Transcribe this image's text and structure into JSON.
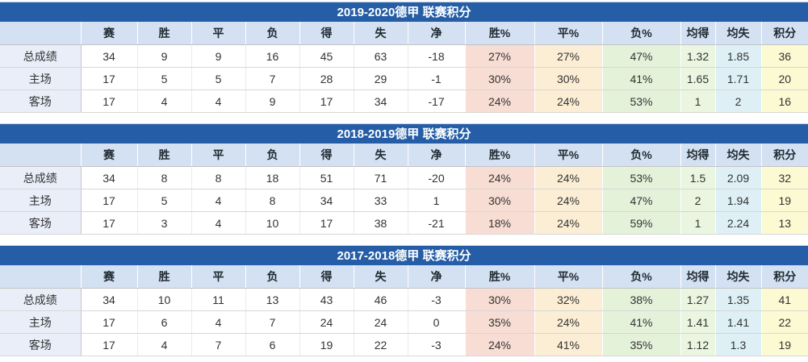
{
  "columns": [
    "",
    "赛",
    "胜",
    "平",
    "负",
    "得",
    "失",
    "净",
    "胜%",
    "平%",
    "负%",
    "均得",
    "均失",
    "积分"
  ],
  "tables": [
    {
      "title": "2019-2020德甲 联赛积分",
      "rows": [
        {
          "label": "总成绩",
          "values": [
            "34",
            "9",
            "9",
            "16",
            "45",
            "63",
            "-18",
            "27%",
            "27%",
            "47%",
            "1.32",
            "1.85",
            "36"
          ]
        },
        {
          "label": "主场",
          "values": [
            "17",
            "5",
            "5",
            "7",
            "28",
            "29",
            "-1",
            "30%",
            "30%",
            "41%",
            "1.65",
            "1.71",
            "20"
          ]
        },
        {
          "label": "客场",
          "values": [
            "17",
            "4",
            "4",
            "9",
            "17",
            "34",
            "-17",
            "24%",
            "24%",
            "53%",
            "1",
            "2",
            "16"
          ]
        }
      ]
    },
    {
      "title": "2018-2019德甲 联赛积分",
      "rows": [
        {
          "label": "总成绩",
          "values": [
            "34",
            "8",
            "8",
            "18",
            "51",
            "71",
            "-20",
            "24%",
            "24%",
            "53%",
            "1.5",
            "2.09",
            "32"
          ]
        },
        {
          "label": "主场",
          "values": [
            "17",
            "5",
            "4",
            "8",
            "34",
            "33",
            "1",
            "30%",
            "24%",
            "47%",
            "2",
            "1.94",
            "19"
          ]
        },
        {
          "label": "客场",
          "values": [
            "17",
            "3",
            "4",
            "10",
            "17",
            "38",
            "-21",
            "18%",
            "24%",
            "59%",
            "1",
            "2.24",
            "13"
          ]
        }
      ]
    },
    {
      "title": "2017-2018德甲 联赛积分",
      "rows": [
        {
          "label": "总成绩",
          "values": [
            "34",
            "10",
            "11",
            "13",
            "43",
            "46",
            "-3",
            "30%",
            "32%",
            "38%",
            "1.27",
            "1.35",
            "41"
          ]
        },
        {
          "label": "主场",
          "values": [
            "17",
            "6",
            "4",
            "7",
            "24",
            "24",
            "0",
            "35%",
            "24%",
            "41%",
            "1.41",
            "1.41",
            "22"
          ]
        },
        {
          "label": "客场",
          "values": [
            "17",
            "4",
            "7",
            "6",
            "19",
            "22",
            "-3",
            "24%",
            "41%",
            "35%",
            "1.12",
            "1.3",
            "19"
          ]
        }
      ]
    }
  ],
  "colors": {
    "title_bar": "#255EA6",
    "title_text": "#FFFFFF",
    "header_bg": "#D3E1F2",
    "header_text": "#222B33",
    "label_bg": "#E9EEF8",
    "win_pct_bg": "#F7DDD3",
    "draw_pct_bg": "#FBEED5",
    "loss_pct_bg": "#E5F2DA",
    "avg_for_bg": "#EAF6E0",
    "avg_against_bg": "#DEF0F5",
    "points_bg": "#FBFAD3"
  }
}
